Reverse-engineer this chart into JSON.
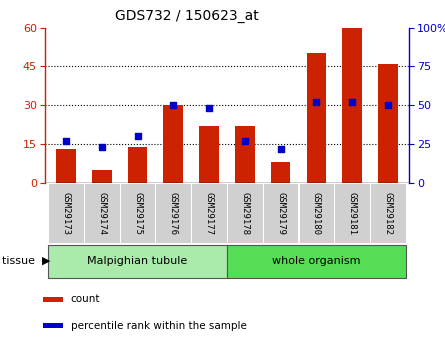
{
  "title": "GDS732 / 150623_at",
  "samples": [
    "GSM29173",
    "GSM29174",
    "GSM29175",
    "GSM29176",
    "GSM29177",
    "GSM29178",
    "GSM29179",
    "GSM29180",
    "GSM29181",
    "GSM29182"
  ],
  "counts": [
    13,
    5,
    14,
    30,
    22,
    22,
    8,
    50,
    60,
    46
  ],
  "percentiles": [
    27,
    23,
    30,
    50,
    48,
    27,
    22,
    52,
    52,
    50
  ],
  "left_ylim": [
    0,
    60
  ],
  "right_ylim": [
    0,
    100
  ],
  "left_yticks": [
    0,
    15,
    30,
    45,
    60
  ],
  "right_yticks": [
    0,
    25,
    50,
    75,
    100
  ],
  "right_yticklabels": [
    "0",
    "25",
    "50",
    "75",
    "100%"
  ],
  "bar_color": "#CC2200",
  "dot_color": "#0000CC",
  "tissue_groups": [
    {
      "label": "Malpighian tubule",
      "start": 0,
      "end": 5,
      "color": "#AAEAAA"
    },
    {
      "label": "whole organism",
      "start": 5,
      "end": 10,
      "color": "#55DD55"
    }
  ],
  "tissue_label": "tissue",
  "legend_items": [
    {
      "label": "count",
      "color": "#CC2200"
    },
    {
      "label": "percentile rank within the sample",
      "color": "#0000CC"
    }
  ],
  "bar_width": 0.55,
  "figsize": [
    4.45,
    3.45
  ],
  "dpi": 100
}
